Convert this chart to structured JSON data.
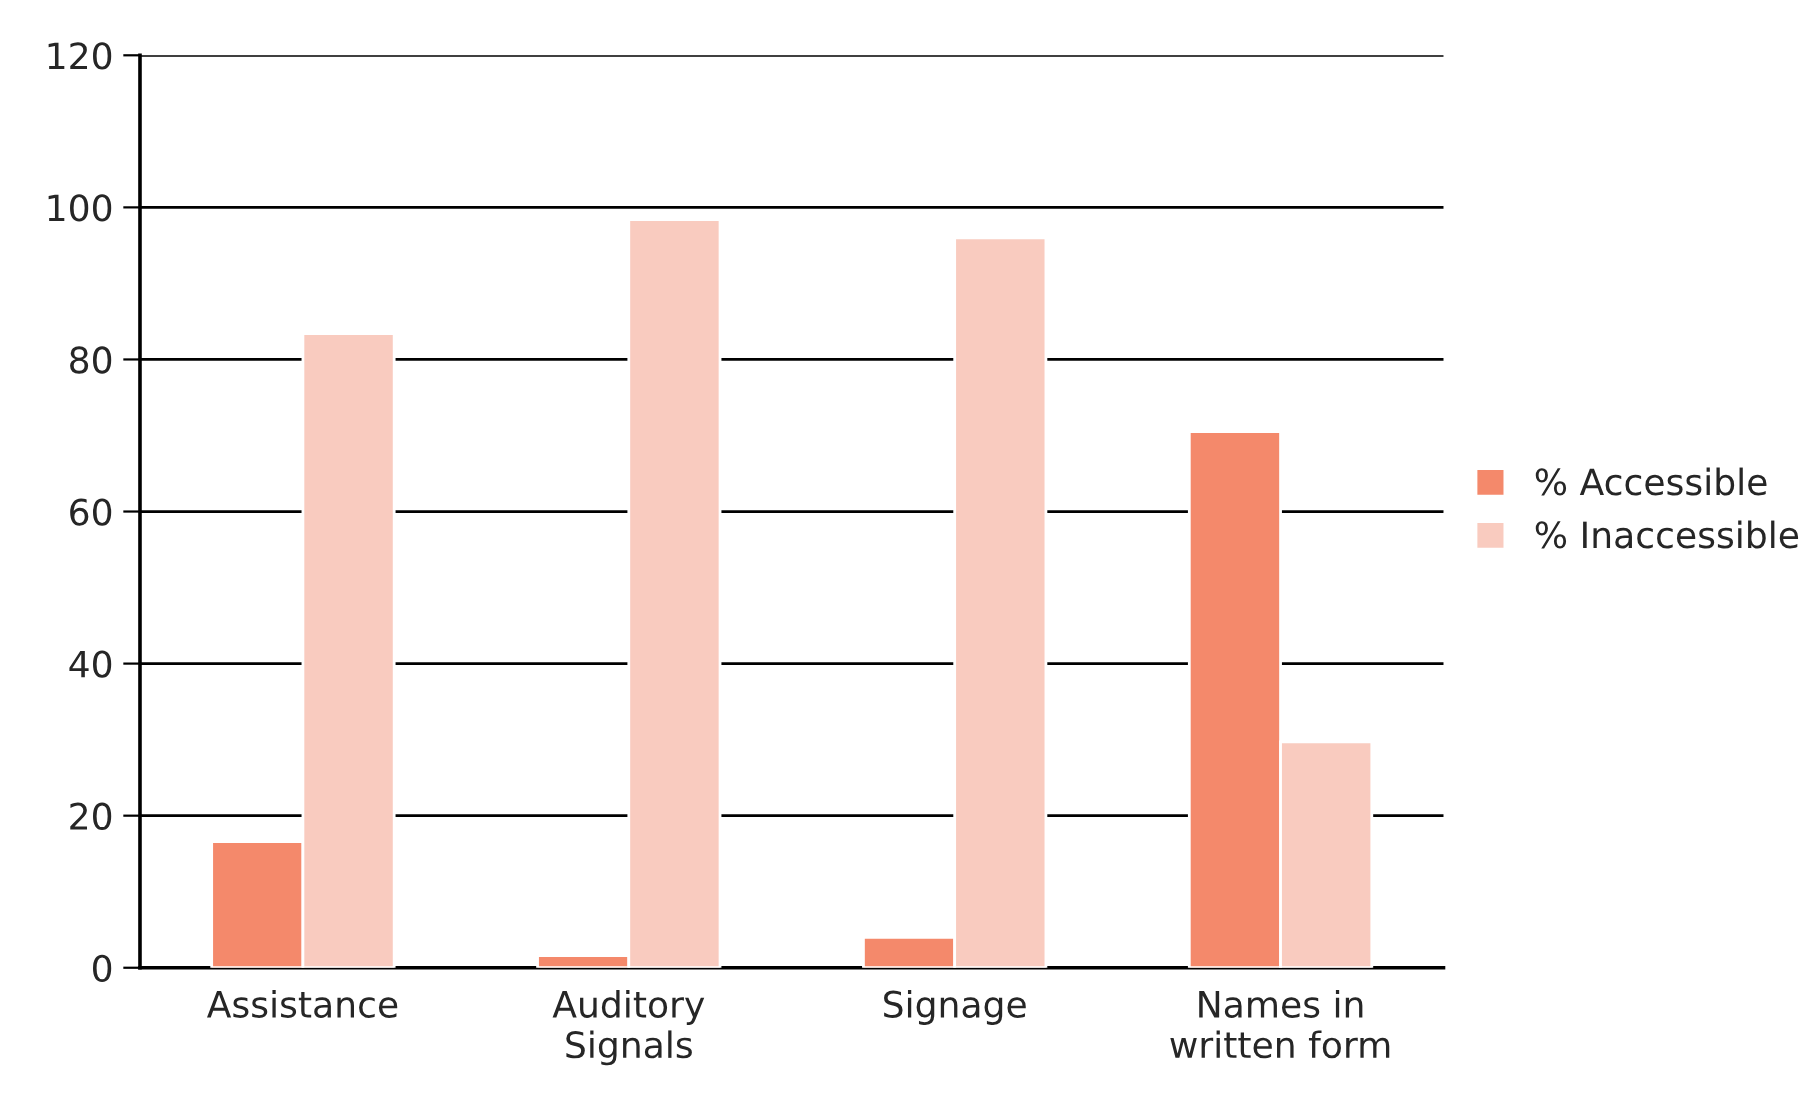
{
  "chart_data": {
    "type": "bar",
    "categories": [
      "Assistance",
      "Auditory\nSignals",
      "Signage",
      "Names in\nwritten form"
    ],
    "series": [
      {
        "name": "% Accessible",
        "color": "#f4896b",
        "values": [
          16.6,
          1.6,
          4,
          70.5
        ]
      },
      {
        "name": "% Inaccessible",
        "color": "#f9cbbf",
        "values": [
          83.4,
          98.4,
          96,
          29.7
        ]
      }
    ],
    "ylim": [
      0,
      120
    ],
    "yticks": [
      0,
      20,
      40,
      60,
      80,
      100,
      120
    ],
    "grid": "y",
    "legend": "right"
  }
}
